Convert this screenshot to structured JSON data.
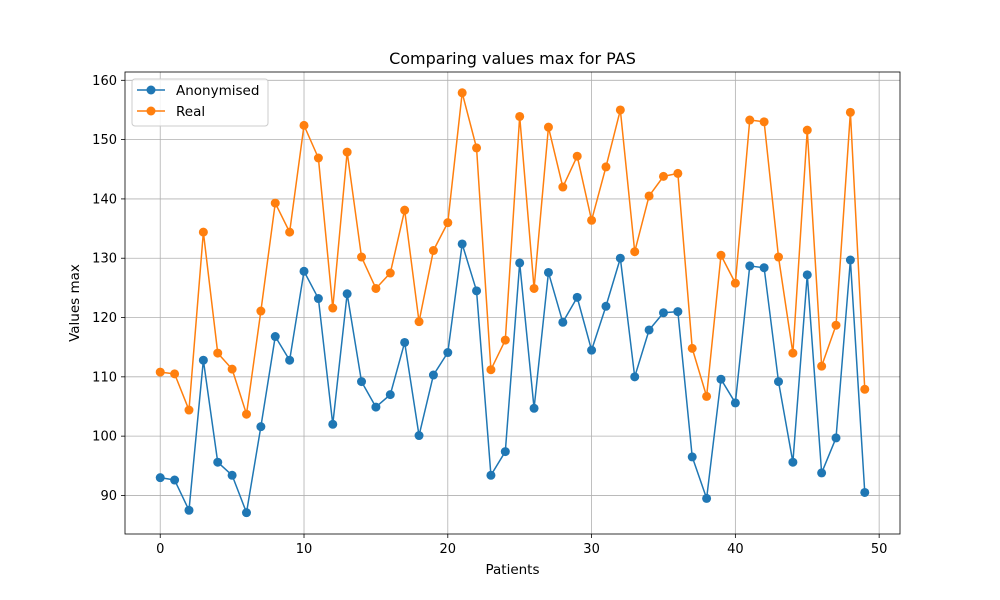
{
  "chart_data": {
    "type": "line",
    "title": "Comparing values max for PAS",
    "xlabel": "Patients",
    "ylabel": "Values max",
    "xlim": [
      -2.45,
      51.45
    ],
    "ylim": [
      83.5,
      161.4
    ],
    "xticks": [
      0,
      10,
      20,
      30,
      40,
      50
    ],
    "yticks": [
      90,
      100,
      110,
      120,
      130,
      140,
      150,
      160
    ],
    "grid": true,
    "legend_position": "top-left",
    "x": [
      0,
      1,
      2,
      3,
      4,
      5,
      6,
      7,
      8,
      9,
      10,
      11,
      12,
      13,
      14,
      15,
      16,
      17,
      18,
      19,
      20,
      21,
      22,
      23,
      24,
      25,
      26,
      27,
      28,
      29,
      30,
      31,
      32,
      33,
      34,
      35,
      36,
      37,
      38,
      39,
      40,
      41,
      42,
      43,
      44,
      45,
      46,
      47,
      48,
      49
    ],
    "series": [
      {
        "name": "Anonymised",
        "color": "#1f77b4",
        "marker": "circle",
        "values": [
          93.0,
          92.6,
          87.5,
          112.8,
          95.6,
          93.4,
          87.1,
          101.6,
          116.8,
          112.8,
          127.8,
          123.2,
          102.0,
          124.0,
          109.2,
          104.9,
          107.0,
          115.8,
          100.1,
          110.3,
          114.1,
          132.4,
          124.5,
          93.4,
          97.4,
          129.2,
          104.7,
          127.6,
          119.2,
          123.4,
          114.5,
          121.9,
          130.0,
          110.0,
          117.9,
          120.8,
          121.0,
          96.5,
          89.5,
          109.6,
          105.6,
          128.7,
          128.4,
          109.2,
          95.6,
          127.2,
          93.8,
          99.7,
          129.7,
          90.5
        ]
      },
      {
        "name": "Real",
        "color": "#ff7f0e",
        "marker": "circle",
        "values": [
          110.8,
          110.5,
          104.4,
          134.4,
          114.0,
          111.3,
          103.7,
          121.1,
          139.3,
          134.4,
          152.4,
          146.9,
          121.6,
          147.9,
          130.2,
          124.9,
          127.5,
          138.1,
          119.3,
          131.3,
          136.0,
          157.9,
          148.6,
          111.2,
          116.2,
          153.9,
          124.9,
          152.1,
          142.0,
          147.2,
          136.4,
          145.4,
          155.0,
          131.1,
          140.5,
          143.8,
          144.3,
          114.8,
          106.7,
          130.5,
          125.8,
          153.3,
          153.0,
          130.2,
          114.0,
          151.6,
          111.8,
          118.7,
          154.6,
          107.9
        ]
      }
    ]
  }
}
